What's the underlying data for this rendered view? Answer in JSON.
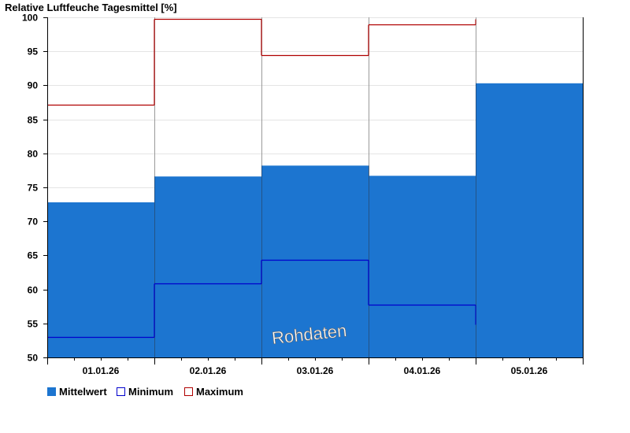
{
  "chart_data": {
    "type": "bar",
    "title": "Relative Luftfeuche Tagesmittel [%]",
    "watermark": "Rohdaten",
    "categories": [
      "01.01.26",
      "02.01.26",
      "03.01.26",
      "04.01.26",
      "05.01.26"
    ],
    "ylim": [
      50,
      100
    ],
    "yticks": [
      50,
      55,
      60,
      65,
      70,
      75,
      80,
      85,
      90,
      95,
      100
    ],
    "grid": true,
    "legend_position": "bottom-left",
    "series": [
      {
        "name": "Mittelwert",
        "kind": "bar",
        "color": "#1c75d0",
        "values": [
          72.8,
          76.6,
          78.2,
          76.7,
          90.3
        ]
      },
      {
        "name": "Minimum",
        "kind": "step",
        "color": "#0000cc",
        "values": [
          53.0,
          60.9,
          64.4,
          57.7,
          null
        ]
      },
      {
        "name": "Maximum",
        "kind": "step",
        "color": "#b00000",
        "values": [
          87.2,
          99.8,
          94.4,
          99.0,
          null
        ]
      }
    ]
  }
}
